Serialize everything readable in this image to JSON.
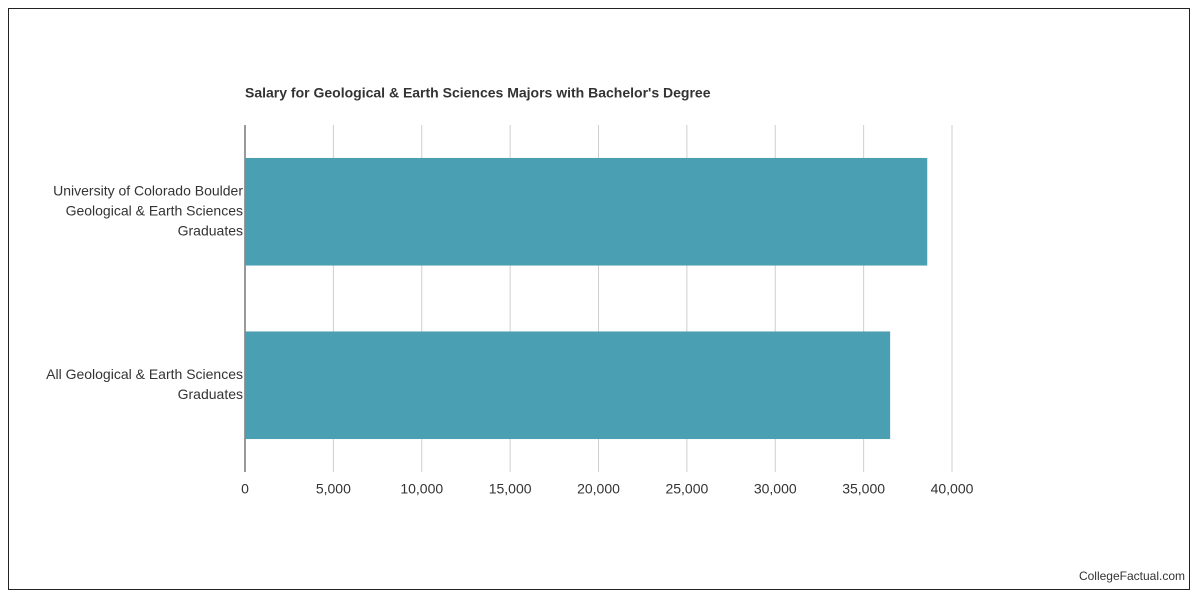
{
  "chart_data": {
    "type": "bar",
    "orientation": "horizontal",
    "title": "Salary for Geological & Earth Sciences Majors with Bachelor's Degree",
    "categories": [
      [
        "University of Colorado Boulder",
        "Geological & Earth Sciences",
        "Graduates"
      ],
      [
        "All Geological & Earth Sciences",
        "Graduates"
      ]
    ],
    "values": [
      38600,
      36500
    ],
    "color": "#4aa0b2",
    "xlim": [
      0,
      40000
    ],
    "xticks": [
      0,
      {
        "value": 5000,
        "label": "5,000"
      },
      {
        "value": 10000,
        "label": "10,000"
      },
      {
        "value": 15000,
        "label": "15,000"
      },
      {
        "value": 20000,
        "label": "20,000"
      },
      {
        "value": 25000,
        "label": "25,000"
      },
      {
        "value": 30000,
        "label": "30,000"
      },
      {
        "value": 35000,
        "label": "35,000"
      },
      {
        "value": 40000,
        "label": "40,000"
      }
    ],
    "grid": true,
    "source": "CollegeFactual.com"
  }
}
